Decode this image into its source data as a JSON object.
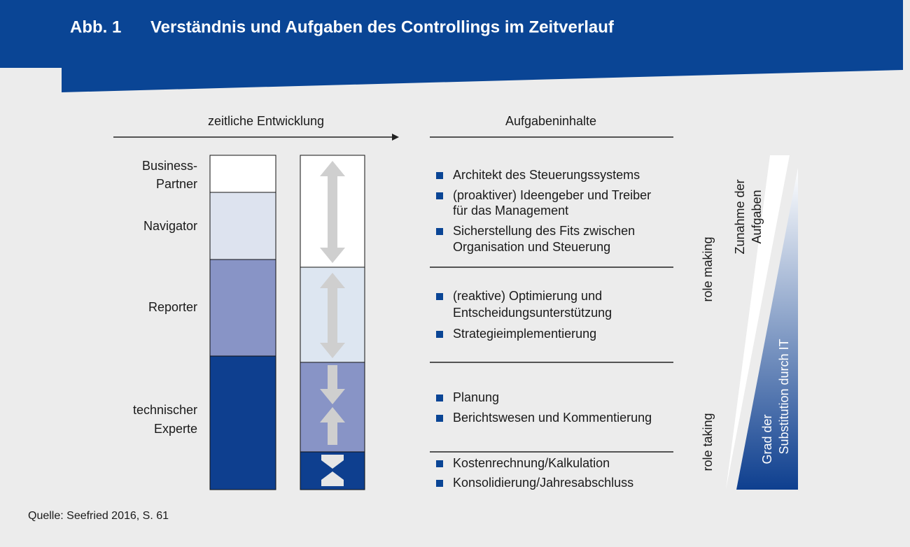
{
  "header": {
    "label": "Abb. 1",
    "title": "Verständnis und Aufgaben des Controllings im Zeitverlauf"
  },
  "left_heading": "zeitliche Entwicklung",
  "right_heading": "Aufgabeninhalte",
  "roles": [
    [
      "Business-",
      "Partner"
    ],
    [
      "Navigator"
    ],
    [
      "Reporter"
    ],
    [
      "technischer",
      "Experte"
    ]
  ],
  "tasks": [
    [
      [
        "Architekt des Steuerungssystems"
      ],
      [
        "(proaktiver) Ideengeber und Treiber",
        "für das Management"
      ],
      [
        "Sicherstellung des Fits zwischen",
        "Organisation und Steuerung"
      ]
    ],
    [
      [
        "(reaktive) Optimierung und",
        "Entscheidungsunterstützung"
      ],
      [
        "Strategieimplementierung"
      ]
    ],
    [
      [
        "Planung"
      ],
      [
        "Berichtswesen und Kommentierung"
      ]
    ],
    [
      [
        "Kostenrechnung/Kalkulation"
      ],
      [
        "Konsolidierung/Jahresabschluss"
      ]
    ]
  ],
  "side_labels": {
    "role_making": "role making",
    "role_taking": "role taking"
  },
  "triangle_labels": {
    "increase": [
      "Zunahme der",
      "Aufgaben"
    ],
    "substitution": [
      "Grad der",
      "Substitution durch IT"
    ]
  },
  "source": "Quelle: Seefried 2016, S. 61"
}
